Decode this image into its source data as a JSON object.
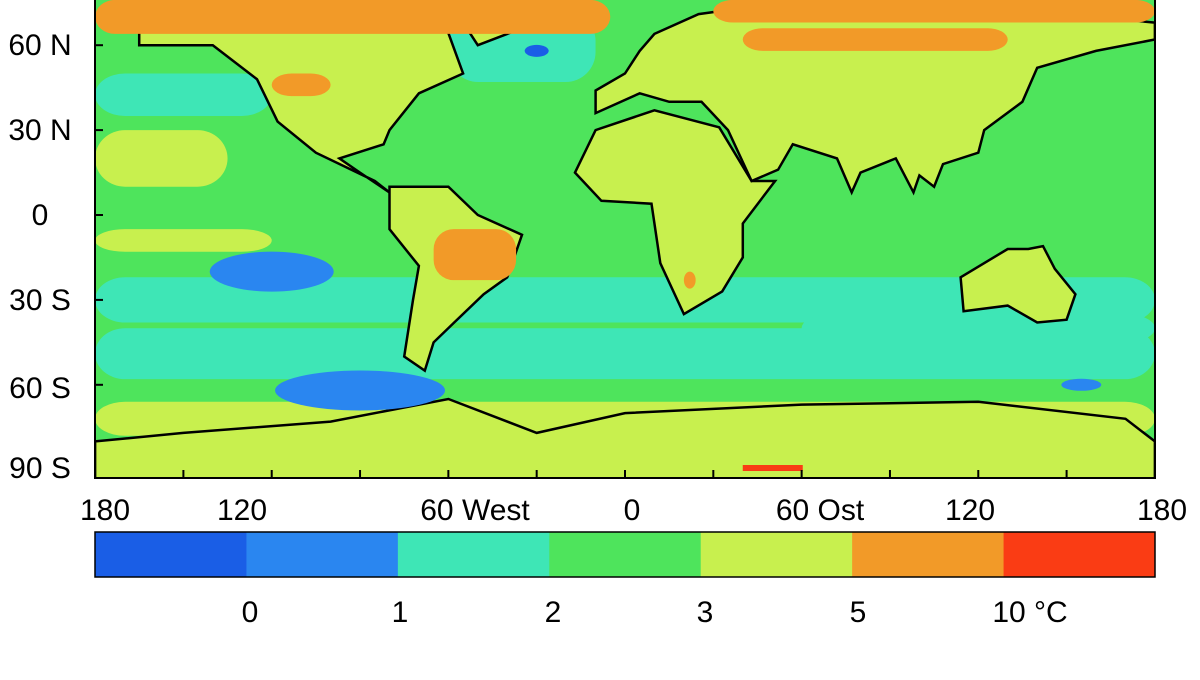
{
  "map": {
    "y_axis_labels": [
      "60 N",
      "30 N",
      "0",
      "30 S",
      "60 S",
      "90 S"
    ],
    "x_axis_labels": [
      "180",
      "120",
      "60 West",
      "0",
      "60 Ost",
      "120",
      "180"
    ],
    "colorbar": {
      "colors": [
        "#1a5ee6",
        "#2a86f0",
        "#3ee6b6",
        "#4ee45c",
        "#c8f04e",
        "#f29a28",
        "#fa3c14"
      ],
      "labels": [
        "0",
        "1",
        "2",
        "3",
        "5",
        "10 °C"
      ]
    }
  }
}
